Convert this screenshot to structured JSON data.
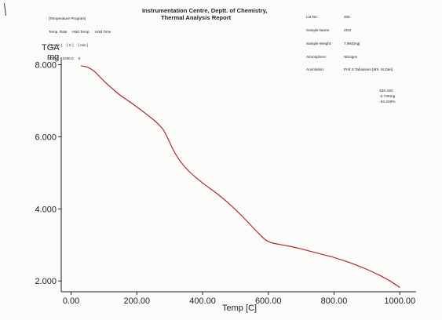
{
  "header": {
    "program_title": "[Temperature Program]",
    "program_cols": [
      "Temp. Rate",
      "Hold Temp.",
      "Hold Time"
    ],
    "program_units": [
      "[ C/min ]",
      "[ C ]",
      "[ min ]"
    ],
    "program_values": [
      "20.00",
      "1000.0",
      "0"
    ],
    "title_line1": "Instrumentation Centre, Deptt. of Chemistry,",
    "title_line2": "Thermal Analysis Report",
    "meta": [
      {
        "key": "Lot No:",
        "value": "205"
      },
      {
        "key": "Sample Name:",
        "value": "ZSG"
      },
      {
        "key": "Sample Weight:",
        "value": "7.984[mg]"
      },
      {
        "key": "Atmosphere:",
        "value": "Nitrogen"
      },
      {
        "key": "Annotation:",
        "value": "Prof.S.Tabassum [MS. M.Zaki]"
      }
    ]
  },
  "annotation": {
    "line1": "430.43C",
    "line2": "-2.726mg",
    "line3": "-34.226%"
  },
  "colors": {
    "curve": "#b0262b",
    "axis": "#222222"
  },
  "chart_data": {
    "type": "line",
    "title": "",
    "ylabel_line1": "TGA",
    "ylabel_line2": "mg",
    "xlabel": "Temp [C]",
    "xlim": [
      -30,
      1040
    ],
    "ylim": [
      1.7,
      8.12
    ],
    "x_ticks": [
      0,
      200,
      400,
      600,
      800,
      1000
    ],
    "x_tick_labels": [
      "0.00",
      "200.00",
      "400.00",
      "600.00",
      "800.00",
      "1000.00"
    ],
    "y_ticks": [
      2,
      4,
      6,
      8
    ],
    "y_tick_labels": [
      "2.000",
      "4.000",
      "6.000",
      "8.000"
    ],
    "series": [
      {
        "x": [
          30,
          50,
          70,
          90,
          110,
          130,
          150,
          180,
          210,
          240,
          260,
          280,
          295,
          310,
          330,
          360,
          400,
          440,
          480,
          520,
          560,
          590,
          610,
          630,
          660,
          700,
          750,
          800,
          850,
          900,
          940,
          970,
          1000
        ],
        "y": [
          7.97,
          7.93,
          7.82,
          7.64,
          7.46,
          7.3,
          7.15,
          6.96,
          6.76,
          6.55,
          6.4,
          6.2,
          5.94,
          5.65,
          5.35,
          5.03,
          4.72,
          4.45,
          4.15,
          3.8,
          3.42,
          3.15,
          3.06,
          3.02,
          2.97,
          2.89,
          2.77,
          2.65,
          2.5,
          2.32,
          2.15,
          2.0,
          1.82
        ]
      }
    ]
  }
}
